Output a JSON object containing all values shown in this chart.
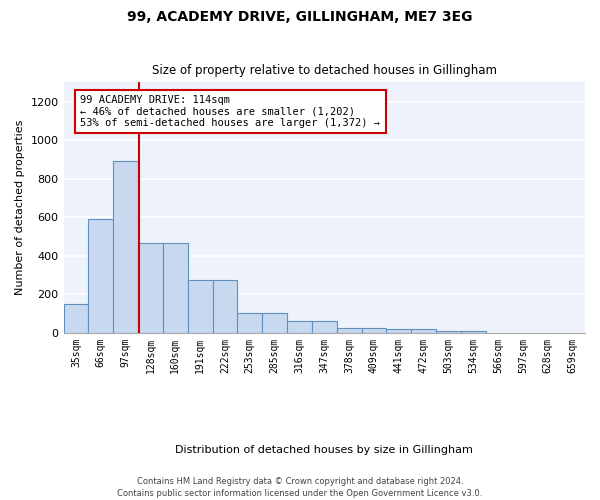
{
  "title1": "99, ACADEMY DRIVE, GILLINGHAM, ME7 3EG",
  "title2": "Size of property relative to detached houses in Gillingham",
  "xlabel": "Distribution of detached houses by size in Gillingham",
  "ylabel": "Number of detached properties",
  "bar_labels": [
    "35sqm",
    "66sqm",
    "97sqm",
    "128sqm",
    "160sqm",
    "191sqm",
    "222sqm",
    "253sqm",
    "285sqm",
    "316sqm",
    "347sqm",
    "378sqm",
    "409sqm",
    "441sqm",
    "472sqm",
    "503sqm",
    "534sqm",
    "566sqm",
    "597sqm",
    "628sqm",
    "659sqm"
  ],
  "bar_heights": [
    150,
    590,
    890,
    465,
    465,
    275,
    275,
    100,
    100,
    60,
    60,
    25,
    25,
    20,
    20,
    10,
    10,
    0,
    0,
    0,
    0
  ],
  "bar_color": "#c8d8ee",
  "bar_edge_color": "#6090c0",
  "annotation_line1": "99 ACADEMY DRIVE: 114sqm",
  "annotation_line2": "← 46% of detached houses are smaller (1,202)",
  "annotation_line3": "53% of semi-detached houses are larger (1,372) →",
  "annotation_box_color": "#ffffff",
  "annotation_box_edge": "#cc0000",
  "ylim": [
    0,
    1300
  ],
  "yticks": [
    0,
    200,
    400,
    600,
    800,
    1000,
    1200
  ],
  "footer1": "Contains HM Land Registry data © Crown copyright and database right 2024.",
  "footer2": "Contains public sector information licensed under the Open Government Licence v3.0.",
  "background_color": "#edf2fb"
}
